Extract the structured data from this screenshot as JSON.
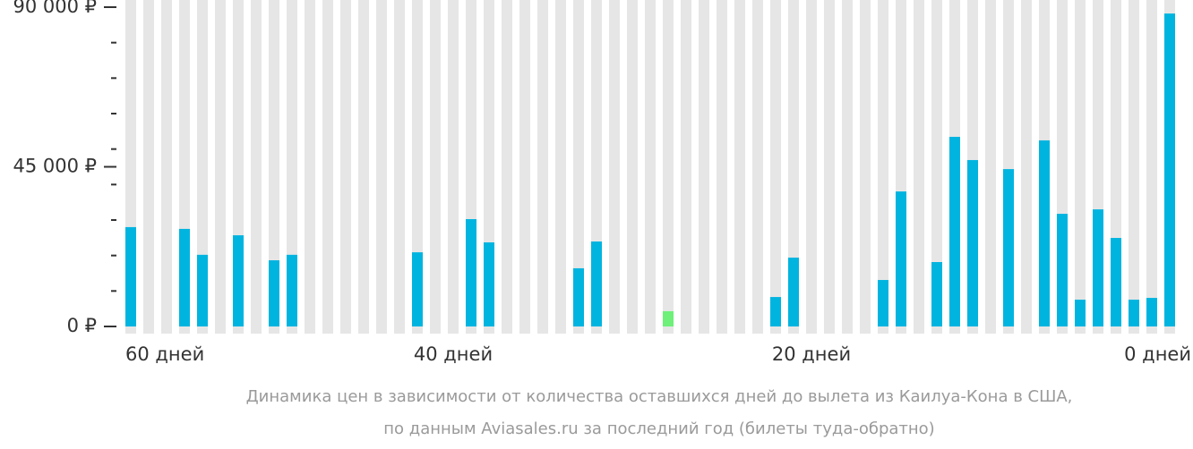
{
  "chart_data": {
    "type": "bar",
    "caption": [
      "Динамика цен в зависимости от количества оставшихся дней до вылета из Каилуа-Кона в США,",
      "по данным Aviasales.ru за последний год (билеты туда-обратно)"
    ],
    "categories": [
      "60 дней",
      null,
      null,
      null,
      null,
      null,
      null,
      null,
      null,
      null,
      null,
      null,
      null,
      null,
      null,
      null,
      null,
      null,
      "40 дней",
      null,
      null,
      null,
      null,
      null,
      null,
      null,
      null,
      null,
      null,
      null,
      null,
      null,
      null,
      null,
      null,
      null,
      null,
      null,
      "20 дней",
      null,
      null,
      null,
      null,
      null,
      null,
      null,
      null,
      null,
      null,
      null,
      null,
      null,
      null,
      null,
      null,
      null,
      null,
      null,
      "0 дней"
    ],
    "series": [
      {
        "color": "#00b4e0",
        "values": [
          28000,
          null,
          null,
          27500,
          20200,
          null,
          25700,
          null,
          18650,
          20200,
          null,
          null,
          null,
          null,
          null,
          null,
          20900,
          null,
          null,
          30250,
          23700,
          null,
          null,
          null,
          null,
          16400,
          23950,
          null,
          null,
          null,
          null,
          null,
          null,
          null,
          null,
          null,
          8300,
          19400,
          null,
          null,
          null,
          null,
          13100,
          38050,
          null,
          18150,
          53450,
          46900,
          null,
          44350,
          null,
          52450,
          31750,
          7550,
          33000,
          24950,
          7550,
          8050,
          88200
        ]
      },
      {
        "color": "#6ef07a",
        "values": [
          null,
          null,
          null,
          null,
          null,
          null,
          null,
          null,
          null,
          null,
          null,
          null,
          null,
          null,
          null,
          null,
          null,
          null,
          null,
          null,
          null,
          null,
          null,
          null,
          null,
          null,
          null,
          null,
          null,
          null,
          4300,
          null,
          null,
          null,
          null,
          null,
          null,
          null,
          null,
          null,
          null,
          null,
          null,
          null,
          null,
          null,
          null,
          null,
          null,
          null,
          null,
          null,
          null,
          null,
          null,
          null,
          null,
          null,
          null
        ]
      }
    ],
    "column_color": "#e6e6e6",
    "ylim": [
      0,
      90000
    ],
    "yticks": [
      {
        "value": 0,
        "label": "0 ₽"
      },
      {
        "value": 45000,
        "label": "45 000 ₽"
      },
      {
        "value": 90000,
        "label": "90 000 ₽"
      }
    ],
    "yminorticks": [
      10000,
      20000,
      30000,
      40000,
      50000,
      60000,
      70000,
      80000
    ]
  }
}
